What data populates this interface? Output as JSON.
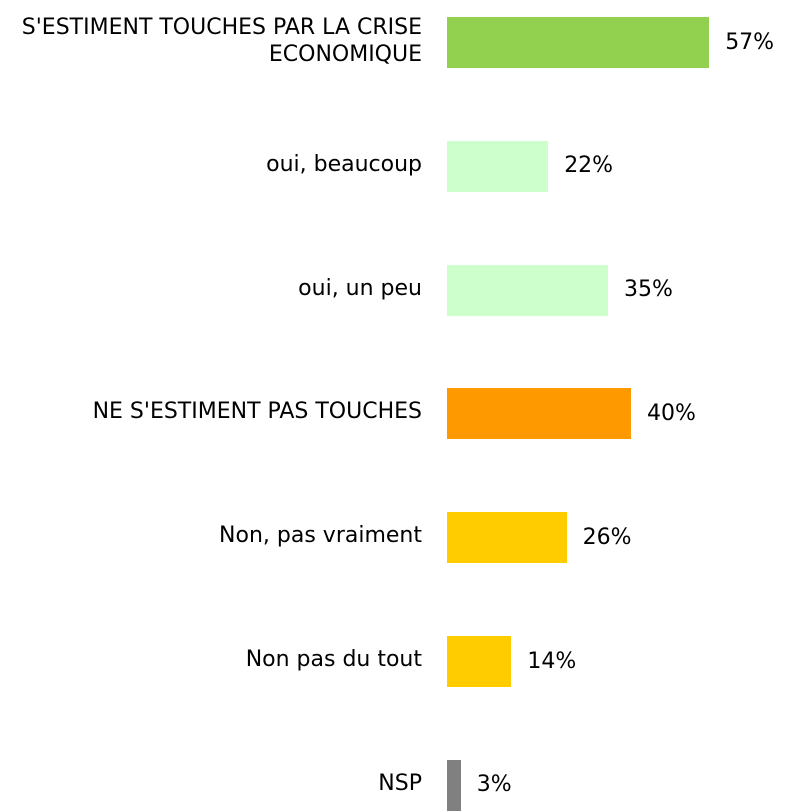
{
  "chart_data": {
    "type": "bar",
    "orientation": "horizontal",
    "categories": [
      "S'ESTIMENT TOUCHES PAR LA CRISE ECONOMIQUE",
      "oui, beaucoup",
      "oui, un peu",
      "NE S'ESTIMENT PAS TOUCHES",
      "Non, pas vraiment",
      "Non pas du tout",
      "NSP"
    ],
    "values": [
      57,
      22,
      35,
      40,
      26,
      14,
      3
    ],
    "value_labels": [
      "57%",
      "22%",
      "35%",
      "40%",
      "26%",
      "14%",
      "3%"
    ],
    "colors": [
      "#92d050",
      "#ccffcc",
      "#ccffcc",
      "#ff9900",
      "#ffcc00",
      "#ffcc00",
      "#808080"
    ]
  }
}
